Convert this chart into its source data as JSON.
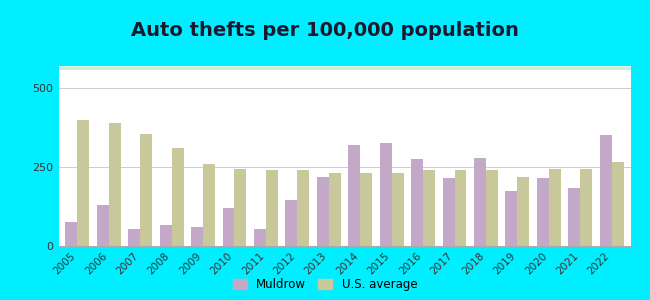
{
  "title": "Auto thefts per 100,000 population",
  "years": [
    2005,
    2006,
    2007,
    2008,
    2009,
    2010,
    2011,
    2012,
    2013,
    2014,
    2015,
    2016,
    2017,
    2018,
    2019,
    2020,
    2021,
    2022
  ],
  "muldrow": [
    75,
    130,
    55,
    65,
    60,
    120,
    55,
    145,
    220,
    320,
    325,
    275,
    215,
    280,
    175,
    215,
    185,
    350
  ],
  "us_average": [
    400,
    390,
    355,
    310,
    260,
    245,
    240,
    240,
    230,
    230,
    230,
    240,
    240,
    240,
    220,
    245,
    245,
    265
  ],
  "muldrow_color": "#c4a8c8",
  "us_avg_color": "#c8c89a",
  "ylim": [
    0,
    570
  ],
  "yticks": [
    0,
    250,
    500
  ],
  "background_outer": "#00eeff",
  "grid_color": "#cccccc",
  "title_fontsize": 14,
  "title_color": "#1a1a2e",
  "bar_width": 0.38,
  "legend_muldrow": "Muldrow",
  "legend_us": "U.S. average",
  "tick_fontsize": 7.5,
  "ytick_fontsize": 8
}
